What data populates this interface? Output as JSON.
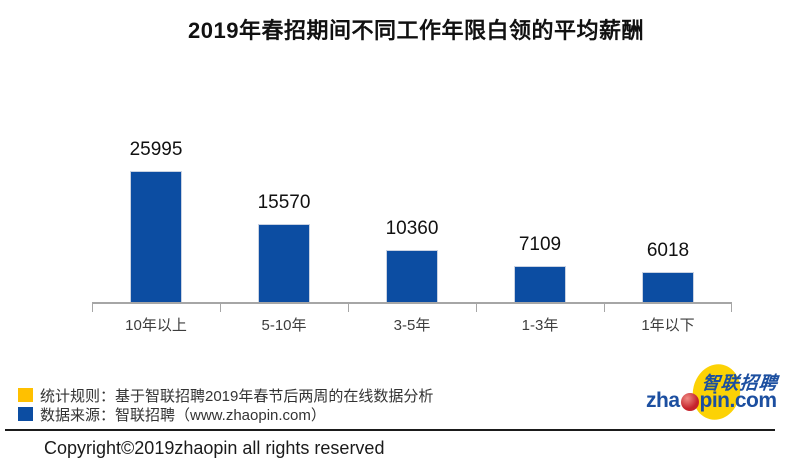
{
  "title": "2019年春招期间不同工作年限白领的平均薪酬",
  "chart_data": {
    "type": "bar",
    "title": "2019年春招期间不同工作年限白领的平均薪酬",
    "categories": [
      "10年以上",
      "5-10年",
      "3-5年",
      "1-3年",
      "1年以下"
    ],
    "values": [
      25995,
      15570,
      10360,
      7109,
      6018
    ],
    "xlabel": "",
    "ylabel": "",
    "ylim": [
      0,
      26000
    ],
    "grid": false,
    "value_labels": true,
    "bar_color": "#0C4DA2",
    "axis_color": "#a6a6a6",
    "legend_position": "none"
  },
  "legend_notes": [
    {
      "color": "#FFC000",
      "text": "统计规则：基于智联招聘2019年春节后两周的在线数据分析"
    },
    {
      "color": "#0C4DA2",
      "text": "数据来源：智联招聘（www.zhaopin.com）"
    }
  ],
  "logo": {
    "cn": "智联招聘",
    "en_pre": "zha",
    "en_post": "pin.com",
    "blue": "#1C4FA0",
    "yellow": "#FCD205",
    "red": "#C5222B"
  },
  "footer": {
    "copyright": "Copyright©2019zhaopin all rights reserved"
  }
}
